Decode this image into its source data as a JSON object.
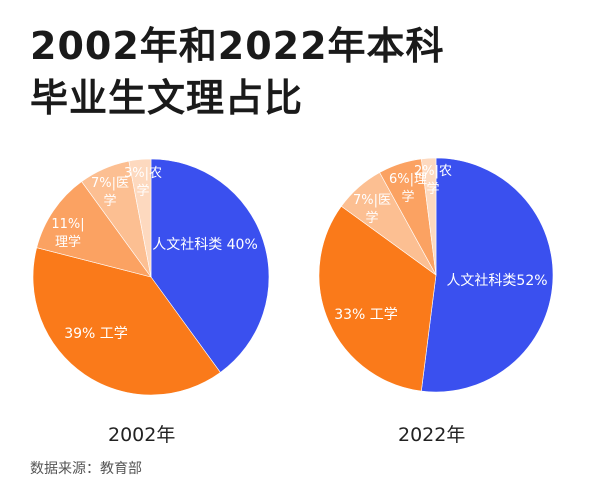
{
  "title_line1": "2002年和2022年本科",
  "title_line2": "毕业生文理占比",
  "source": "数据来源：教育部",
  "colors": {
    "人文社科类": "#3a50ef",
    "工学": "#fa7a1a",
    "理学": "#fba262",
    "医学": "#fcbf92",
    "农学": "#fdd9bf"
  },
  "chart_data": [
    {
      "type": "pie",
      "label": "2002年",
      "slices": [
        {
          "name": "人文社科类",
          "value": 40,
          "text": "人文社科类 40%"
        },
        {
          "name": "工学",
          "value": 39,
          "text": "39% 工学"
        },
        {
          "name": "理学",
          "value": 11,
          "text": "11%|理学"
        },
        {
          "name": "医学",
          "value": 7,
          "text": "7%|医学"
        },
        {
          "name": "农学",
          "value": 3,
          "text": "3%|农学"
        }
      ]
    },
    {
      "type": "pie",
      "label": "2022年",
      "slices": [
        {
          "name": "人文社科类",
          "value": 52,
          "text": "人文社科类52%"
        },
        {
          "name": "工学",
          "value": 33,
          "text": "33% 工学"
        },
        {
          "name": "医学",
          "value": 7,
          "text": "7%|医学"
        },
        {
          "name": "理学",
          "value": 6,
          "text": "6%|理学"
        },
        {
          "name": "农学",
          "value": 2,
          "text": "2%|农学"
        }
      ]
    }
  ]
}
